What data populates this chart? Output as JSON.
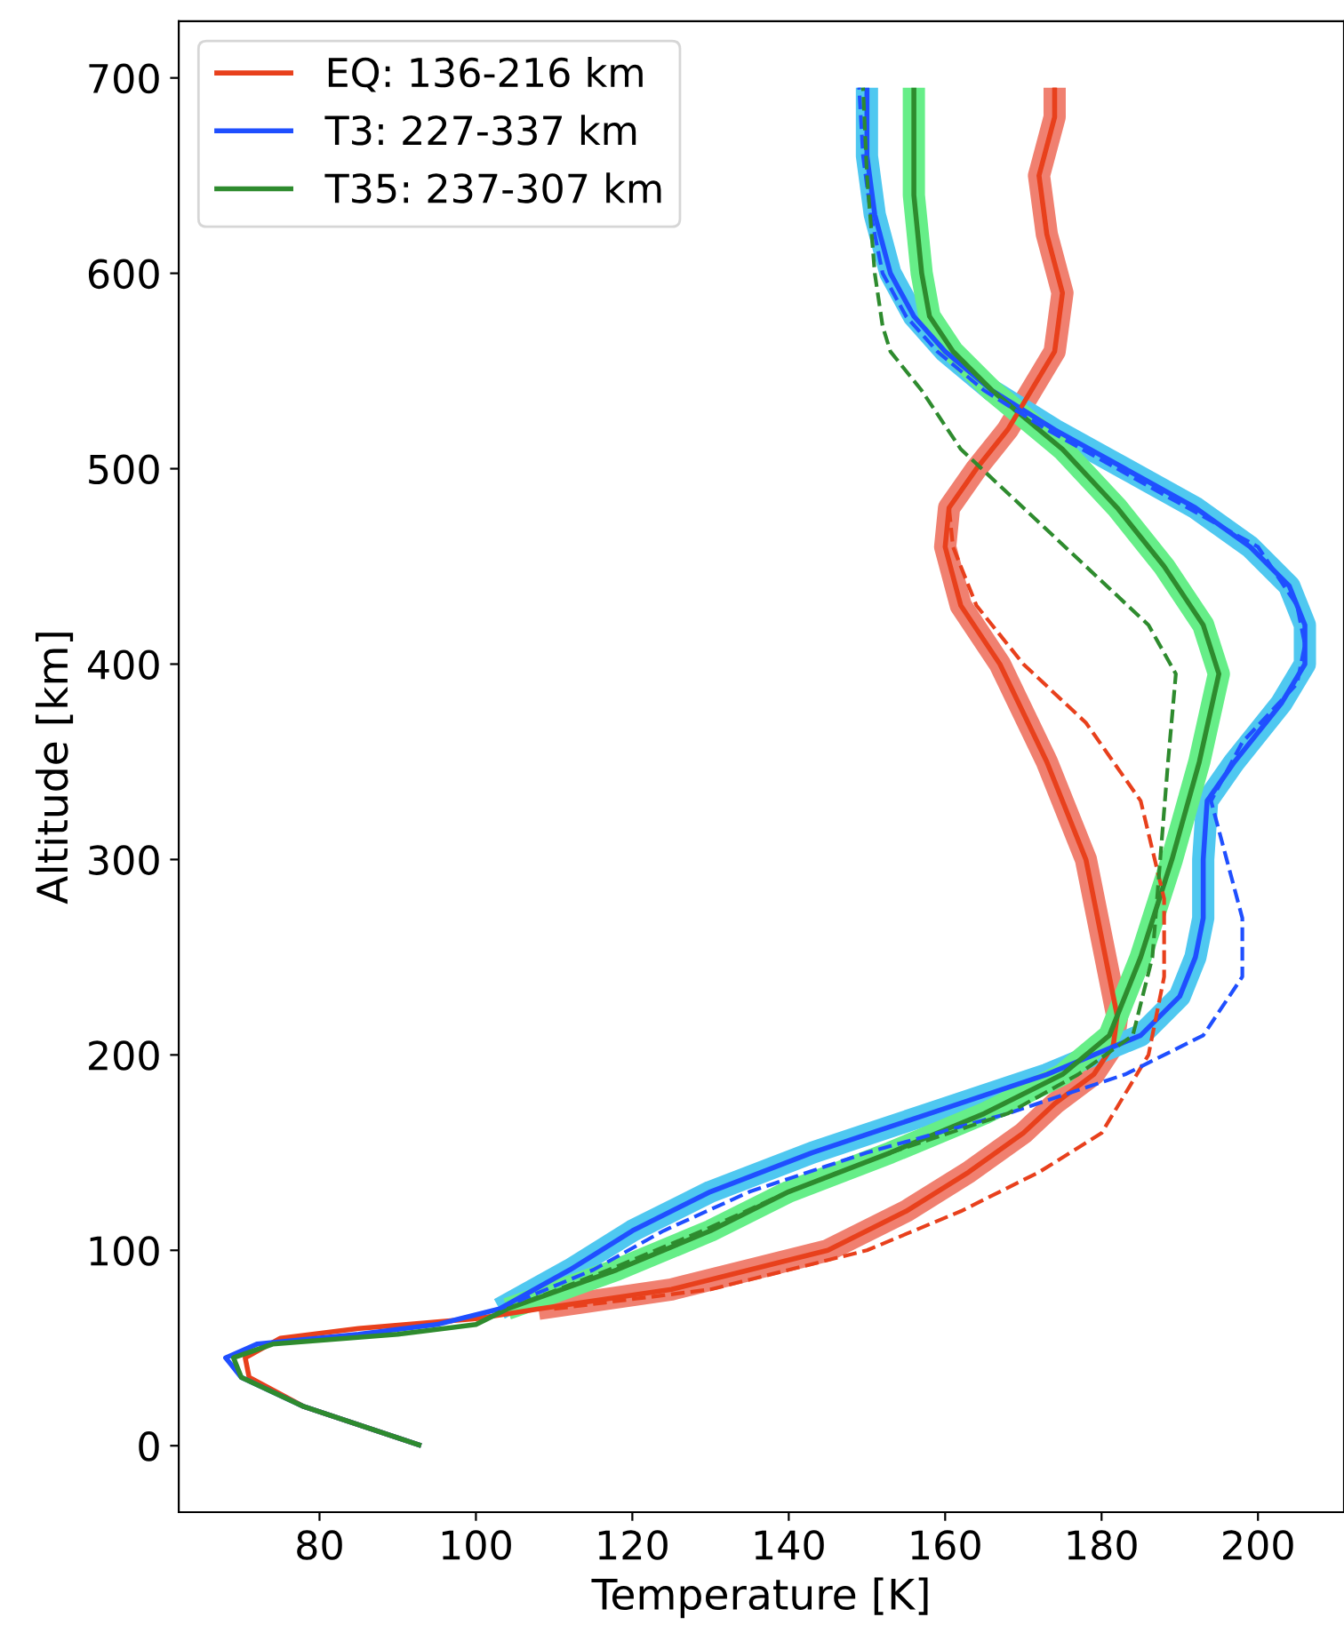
{
  "chart_data": {
    "type": "line",
    "xlabel": "Temperature [K]",
    "ylabel": "Altitude [km]",
    "xlim": [
      62,
      211
    ],
    "ylim": [
      -34,
      729
    ],
    "xticks": [
      80,
      100,
      120,
      140,
      160,
      180,
      200
    ],
    "yticks": [
      0,
      100,
      200,
      300,
      400,
      500,
      600,
      700
    ],
    "grid": false,
    "legend": "top left",
    "marker": "none",
    "series": [
      {
        "color": "#f08070",
        "line_style": "solid",
        "x": [
          108,
          125,
          135,
          145,
          155,
          163,
          170,
          174,
          179,
          181.5,
          182,
          181,
          180,
          178,
          173,
          167,
          162,
          160,
          160.5,
          164,
          168,
          171,
          174,
          175,
          173,
          172,
          174,
          174
        ],
        "values": [
          70,
          80,
          90,
          100,
          120,
          140,
          160,
          175,
          190,
          205,
          220,
          240,
          260,
          300,
          350,
          400,
          430,
          460,
          480,
          500,
          520,
          540,
          560,
          590,
          620,
          650,
          680,
          695
        ]
      },
      {
        "color": "#4fc8f0",
        "line_style": "solid",
        "x": [
          103,
          112,
          120,
          130,
          143,
          158,
          173,
          185,
          190,
          192,
          193,
          193,
          193.5,
          197,
          203,
          206,
          206,
          204,
          199,
          192,
          183,
          174,
          166,
          160,
          156,
          153,
          151,
          150,
          150
        ],
        "values": [
          70,
          90,
          110,
          130,
          150,
          170,
          190,
          210,
          230,
          250,
          270,
          300,
          330,
          350,
          380,
          400,
          420,
          440,
          460,
          480,
          500,
          520,
          540,
          560,
          578,
          600,
          630,
          660,
          695
        ]
      },
      {
        "color": "#66ee88",
        "line_style": "solid",
        "x": [
          104,
          118,
          130,
          140,
          153,
          165,
          175,
          181,
          185,
          189,
          192.5,
          195,
          193,
          188,
          182,
          175,
          166,
          161,
          158,
          157,
          156,
          156
        ],
        "values": [
          70,
          90,
          110,
          130,
          150,
          170,
          190,
          210,
          250,
          300,
          350,
          395,
          420,
          450,
          480,
          510,
          540,
          560,
          578,
          600,
          640,
          695
        ]
      },
      {
        "name": "EQ: 136-216 km",
        "color": "#e8401c",
        "line_style": "solid",
        "x": [
          93,
          78,
          71,
          70.5,
          75,
          85,
          100,
          108,
          125,
          135,
          145,
          155,
          163,
          170,
          174,
          179,
          181.5,
          182,
          181,
          180,
          178,
          173,
          167,
          162,
          160,
          160.5,
          164,
          168,
          171,
          174,
          175,
          173,
          172,
          174,
          174
        ],
        "values": [
          0,
          20,
          35,
          45,
          55,
          60,
          65,
          70,
          80,
          90,
          100,
          120,
          140,
          160,
          175,
          190,
          205,
          220,
          240,
          260,
          300,
          350,
          400,
          430,
          460,
          480,
          500,
          520,
          540,
          560,
          590,
          620,
          650,
          680,
          695
        ]
      },
      {
        "name": "T3: 227-337 km",
        "color": "#1f4fff",
        "line_style": "solid",
        "x": [
          93,
          78,
          70,
          68,
          72,
          85,
          95,
          103,
          112,
          120,
          130,
          143,
          158,
          173,
          185,
          190,
          192,
          193,
          193,
          193.5,
          197,
          203,
          206,
          206,
          204,
          199,
          192,
          183,
          174,
          166,
          160,
          156,
          153,
          151,
          150,
          150
        ],
        "values": [
          0,
          20,
          35,
          45,
          52,
          57,
          62,
          70,
          90,
          110,
          130,
          150,
          170,
          190,
          210,
          230,
          250,
          270,
          300,
          330,
          350,
          380,
          400,
          420,
          440,
          460,
          480,
          500,
          520,
          540,
          560,
          578,
          600,
          630,
          660,
          695
        ]
      },
      {
        "name": "T35: 237-307 km",
        "color": "#2e8b2e",
        "line_style": "solid",
        "x": [
          93,
          78,
          70,
          69,
          74,
          90,
          100,
          104,
          118,
          130,
          140,
          153,
          165,
          175,
          181,
          185,
          189,
          192.5,
          195,
          193,
          188,
          182,
          175,
          166,
          161,
          158,
          157,
          156,
          156
        ],
        "values": [
          0,
          20,
          35,
          45,
          52,
          57,
          62,
          70,
          90,
          110,
          130,
          150,
          170,
          190,
          210,
          250,
          300,
          350,
          395,
          420,
          450,
          480,
          510,
          540,
          560,
          578,
          600,
          640,
          695
        ]
      },
      {
        "color": "#e8401c",
        "line_style": "dashed",
        "x": [
          110,
          130,
          150,
          162,
          172,
          180,
          186,
          188,
          188,
          185,
          178,
          170,
          164,
          161,
          160.5,
          164,
          168,
          171,
          174,
          175,
          173,
          172,
          174,
          174
        ],
        "values": [
          70,
          80,
          100,
          120,
          140,
          160,
          200,
          240,
          280,
          330,
          370,
          400,
          430,
          460,
          480,
          500,
          520,
          540,
          560,
          590,
          620,
          650,
          680,
          695
        ]
      },
      {
        "color": "#1f4fff",
        "line_style": "dashed",
        "x": [
          103,
          115,
          124,
          135,
          150,
          168,
          183,
          193,
          198,
          198,
          196,
          194,
          198,
          205,
          206,
          205,
          200,
          191,
          182,
          173,
          165,
          159,
          155,
          152,
          150.5,
          149.5,
          149
        ],
        "values": [
          70,
          90,
          110,
          130,
          150,
          170,
          190,
          210,
          240,
          270,
          300,
          330,
          360,
          390,
          410,
          430,
          460,
          480,
          500,
          520,
          540,
          560,
          578,
          600,
          630,
          660,
          695
        ]
      },
      {
        "color": "#2e8b2e",
        "line_style": "dashed",
        "x": [
          104,
          117,
          129,
          140,
          153,
          168,
          177,
          184,
          186.5,
          187.5,
          188.5,
          189.5,
          186,
          178,
          170,
          162,
          157,
          153,
          152,
          151,
          150,
          149.5
        ],
        "values": [
          70,
          90,
          110,
          130,
          150,
          170,
          190,
          210,
          250,
          300,
          350,
          395,
          420,
          450,
          480,
          510,
          540,
          560,
          573,
          600,
          650,
          695
        ]
      }
    ]
  }
}
